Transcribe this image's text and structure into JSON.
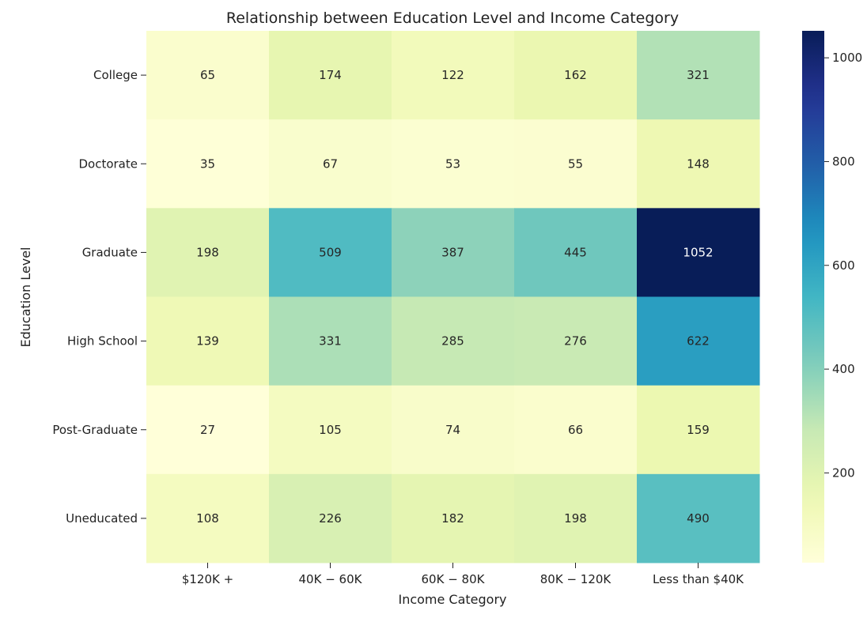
{
  "chart_data": {
    "type": "heatmap",
    "title": "Relationship between Education Level and Income Category",
    "xlabel": "Income Category",
    "ylabel": "Education Level",
    "x_categories": [
      "$120K +",
      "$40K - $60K",
      "$60K - $80K",
      "$80K - $120K",
      "Less than $40K"
    ],
    "x_tick_labels": [
      "$120K +",
      "40K − 60K",
      "60K − 80K",
      "80K − 120K",
      "Less than $40K"
    ],
    "y_categories": [
      "College",
      "Doctorate",
      "Graduate",
      "High School",
      "Post-Graduate",
      "Uneducated"
    ],
    "values": [
      [
        65,
        174,
        122,
        162,
        321
      ],
      [
        35,
        67,
        53,
        55,
        148
      ],
      [
        198,
        509,
        387,
        445,
        1052
      ],
      [
        139,
        331,
        285,
        276,
        622
      ],
      [
        27,
        105,
        74,
        66,
        159
      ],
      [
        108,
        226,
        182,
        198,
        490
      ]
    ],
    "colormap": "YlGnBu",
    "annotations": true,
    "grid": false,
    "colorbar": {
      "range": [
        27,
        1052
      ],
      "ticks": [
        200,
        400,
        600,
        800,
        1000
      ],
      "placement": "right"
    }
  }
}
